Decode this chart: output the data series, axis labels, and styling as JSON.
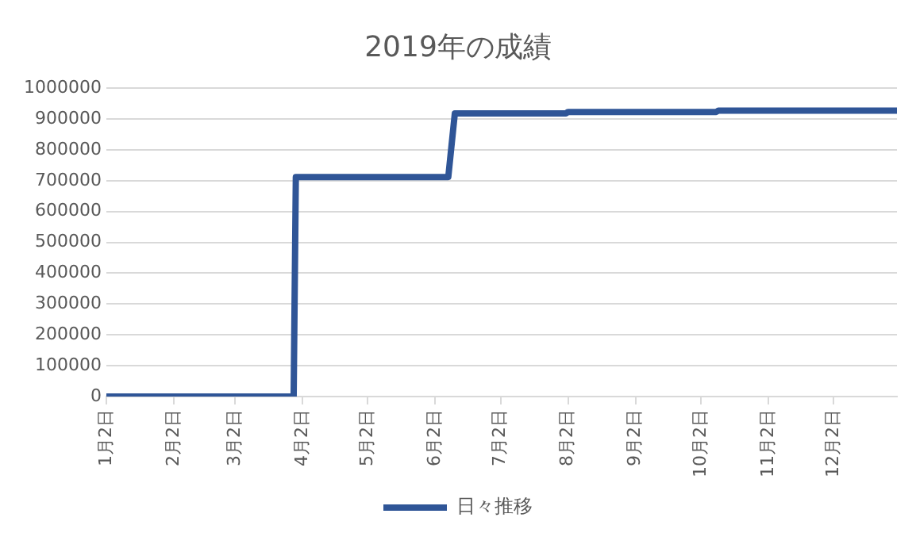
{
  "chart_data": {
    "type": "line",
    "title": "2019年の成績",
    "x": [
      "2019-01-02",
      "2019-03-29",
      "2019-03-30",
      "2019-06-08",
      "2019-06-11",
      "2019-08-01",
      "2019-08-02",
      "2019-10-09",
      "2019-10-10",
      "2019-12-31"
    ],
    "series": [
      {
        "name": "日々推移",
        "color": "#2f5597",
        "values": [
          0,
          0,
          712000,
          712000,
          918000,
          918000,
          923000,
          923000,
          927000,
          927000
        ]
      }
    ],
    "xlim": [
      "2019-01-02",
      "2019-12-31"
    ],
    "xticks": [
      {
        "value": "2019-01-02",
        "label": "1月2日"
      },
      {
        "value": "2019-02-02",
        "label": "2月2日"
      },
      {
        "value": "2019-03-02",
        "label": "3月2日"
      },
      {
        "value": "2019-04-02",
        "label": "4月2日"
      },
      {
        "value": "2019-05-02",
        "label": "5月2日"
      },
      {
        "value": "2019-06-02",
        "label": "6月2日"
      },
      {
        "value": "2019-07-02",
        "label": "7月2日"
      },
      {
        "value": "2019-08-02",
        "label": "8月2日"
      },
      {
        "value": "2019-09-02",
        "label": "9月2日"
      },
      {
        "value": "2019-10-02",
        "label": "10月2日"
      },
      {
        "value": "2019-11-02",
        "label": "11月2日"
      },
      {
        "value": "2019-12-02",
        "label": "12月2日"
      }
    ],
    "ylim": [
      0,
      1000000
    ],
    "yticks": [
      0,
      100000,
      200000,
      300000,
      400000,
      500000,
      600000,
      700000,
      800000,
      900000,
      1000000
    ],
    "grid": "y",
    "legend": "bottom",
    "marker": "none",
    "line_style": "solid"
  }
}
